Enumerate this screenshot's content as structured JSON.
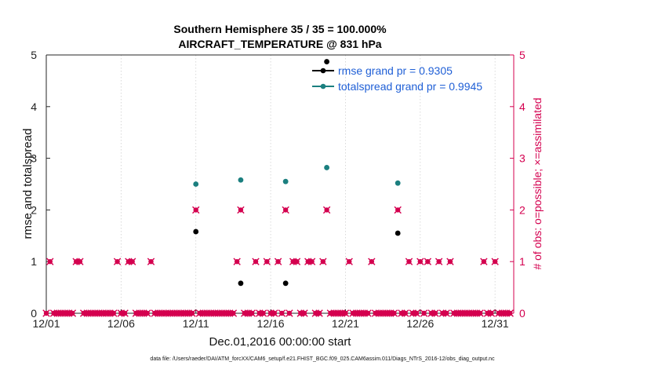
{
  "chart_data": {
    "type": "scatter",
    "title": "Southern Hemisphere 35 / 35 = 100.000%",
    "subtitle": "AIRCRAFT_TEMPERATURE @ 831 hPa",
    "xlabel": "Dec.01,2016 00:00:00 start",
    "ylabel": "rmse and totalspread",
    "y2label": "# of obs: o=possible; ×=assimilated",
    "xlim": [
      0,
      31.25
    ],
    "ylim": [
      0,
      5
    ],
    "y2lim": [
      0,
      5
    ],
    "x_ticks": [
      {
        "value": 0,
        "label": "12/01"
      },
      {
        "value": 5,
        "label": "12/06"
      },
      {
        "value": 10,
        "label": "12/11"
      },
      {
        "value": 15,
        "label": "12/16"
      },
      {
        "value": 20,
        "label": "12/21"
      },
      {
        "value": 25,
        "label": "12/26"
      },
      {
        "value": 30,
        "label": "12/31"
      }
    ],
    "y_ticks": [
      "0",
      "1",
      "2",
      "3",
      "4",
      "5"
    ],
    "y2_ticks": [
      "0",
      "1",
      "2",
      "3",
      "4",
      "5"
    ],
    "series": [
      {
        "name": "rmse",
        "legend": "rmse grand pr = 0.9305",
        "color": "#000000",
        "x": [
          10.0,
          13.0,
          16.0,
          18.75,
          23.5
        ],
        "y": [
          1.58,
          0.58,
          0.58,
          4.87,
          1.55
        ]
      },
      {
        "name": "totalspread",
        "legend": "totalspread grand pr = 0.9945",
        "color": "#1b7f7f",
        "x": [
          10.0,
          13.0,
          16.0,
          18.75,
          23.5
        ],
        "y": [
          2.5,
          2.58,
          2.55,
          2.82,
          2.52
        ]
      },
      {
        "name": "obs_count",
        "color": "#d4004f",
        "axis": "right",
        "x": [
          0.0,
          0.25,
          0.5,
          0.75,
          1.0,
          1.25,
          1.5,
          1.75,
          2.0,
          2.25,
          2.5,
          2.75,
          3.0,
          3.25,
          3.5,
          3.75,
          4.0,
          4.25,
          4.5,
          4.75,
          5.0,
          5.25,
          5.5,
          5.75,
          6.0,
          6.25,
          6.5,
          6.75,
          7.0,
          7.25,
          7.5,
          7.75,
          8.0,
          8.25,
          8.5,
          8.75,
          9.0,
          9.25,
          9.5,
          9.75,
          10.0,
          10.25,
          10.5,
          10.75,
          11.0,
          11.25,
          11.5,
          11.75,
          12.0,
          12.25,
          12.5,
          12.75,
          13.0,
          13.25,
          13.5,
          13.75,
          14.0,
          14.25,
          14.5,
          14.75,
          15.0,
          15.25,
          15.5,
          15.75,
          16.0,
          16.25,
          16.5,
          16.75,
          17.0,
          17.25,
          17.5,
          17.75,
          18.0,
          18.25,
          18.5,
          18.75,
          19.0,
          19.25,
          19.5,
          19.75,
          20.0,
          20.25,
          20.5,
          20.75,
          21.0,
          21.25,
          21.5,
          21.75,
          22.0,
          22.25,
          22.5,
          22.75,
          23.0,
          23.25,
          23.5,
          23.75,
          24.0,
          24.25,
          24.5,
          24.75,
          25.0,
          25.25,
          25.5,
          25.75,
          26.0,
          26.25,
          26.5,
          26.75,
          27.0,
          27.25,
          27.5,
          27.75,
          28.0,
          28.25,
          28.5,
          28.75,
          29.0,
          29.25,
          29.5,
          29.75,
          30.0,
          30.25,
          30.5,
          30.75,
          31.0
        ],
        "y": [
          0,
          1,
          0,
          0,
          0,
          0,
          0,
          0,
          1,
          1,
          0,
          0,
          0,
          0,
          0,
          0,
          0,
          0,
          0,
          1,
          0,
          0,
          1,
          1,
          0,
          0,
          0,
          0,
          1,
          0,
          0,
          0,
          0,
          0,
          0,
          0,
          0,
          0,
          0,
          0,
          2,
          0,
          0,
          0,
          0,
          0,
          0,
          0,
          0,
          0,
          0,
          1,
          2,
          0,
          0,
          0,
          1,
          0,
          0,
          1,
          0,
          0,
          1,
          0,
          2,
          0,
          1,
          1,
          0,
          0,
          1,
          1,
          0,
          0,
          1,
          2,
          0,
          0,
          0,
          0,
          0,
          1,
          0,
          0,
          0,
          0,
          0,
          1,
          0,
          0,
          0,
          0,
          0,
          0,
          2,
          0,
          0,
          1,
          0,
          0,
          1,
          0,
          1,
          0,
          0,
          1,
          0,
          0,
          1,
          0,
          0,
          0,
          0,
          0,
          0,
          0,
          0,
          1,
          0,
          0,
          1,
          0,
          0,
          0,
          0
        ]
      }
    ],
    "legend_position": "top-right"
  },
  "footer": "data file: /Users/raeder/DAI/ATM_forcXX/CAM6_setup/f.e21.FHIST_BGC.f09_025.CAM6assim.011/Diags_NTrS_2016-12/obs_diag_output.nc"
}
